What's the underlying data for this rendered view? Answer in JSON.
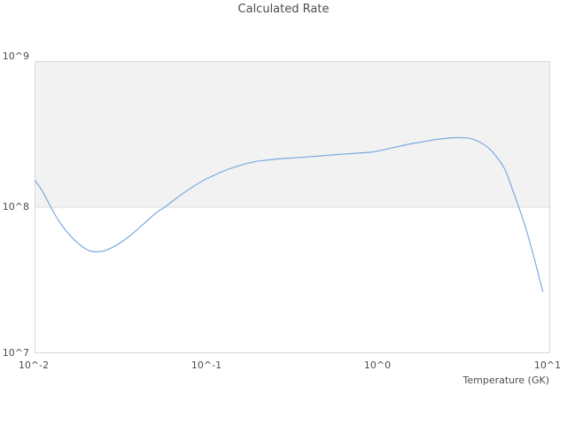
{
  "chart_data": {
    "type": "line",
    "title": "Calculated Rate",
    "xlabel": "Temperature (GK)",
    "ylabel": "",
    "x_scale": "log",
    "y_scale": "log",
    "xlim": [
      0.01,
      10
    ],
    "ylim": [
      10000000.0,
      1000000000.0
    ],
    "x_ticks": [
      "10^-2",
      "10^-1",
      "10^0",
      "10^1"
    ],
    "y_ticks": [
      "10^7",
      "10^8",
      "10^9"
    ],
    "legend": "none",
    "grid": "single horizontal gridline at 10^8; shaded band between 10^8 and 10^9",
    "series": [
      {
        "name": "Calculated Rate",
        "x": [
          0.01,
          0.011,
          0.013,
          0.015,
          0.018,
          0.021,
          0.025,
          0.03,
          0.036,
          0.042,
          0.05,
          0.057,
          0.066,
          0.077,
          0.095,
          0.11,
          0.13,
          0.16,
          0.19,
          0.22,
          0.28,
          0.36,
          0.46,
          0.58,
          0.75,
          0.94,
          1.2,
          1.5,
          1.85,
          2.2,
          2.8,
          3.4,
          3.9,
          4.4,
          4.9,
          5.5,
          6.1,
          6.6,
          7.3,
          8.1,
          9.1
        ],
        "y": [
          152000000.0,
          130000000.0,
          90000000.0,
          70000000.0,
          56000000.0,
          50000000.0,
          50000000.0,
          55000000.0,
          64000000.0,
          75000000.0,
          90000000.0,
          100000000.0,
          114000000.0,
          130000000.0,
          152000000.0,
          165000000.0,
          180000000.0,
          195000000.0,
          205000000.0,
          210000000.0,
          216000000.0,
          220000000.0,
          225000000.0,
          230000000.0,
          235000000.0,
          240000000.0,
          255000000.0,
          270000000.0,
          282000000.0,
          292000000.0,
          300000000.0,
          297000000.0,
          280000000.0,
          255000000.0,
          222000000.0,
          180000000.0,
          130000000.0,
          100000000.0,
          70000000.0,
          45000000.0,
          26500000.0
        ]
      }
    ],
    "colors": {
      "line": "#7aa9e0",
      "band_fill": "#f2f2f2",
      "plot_border": "#d9d9d9",
      "gridline": "#dedede",
      "text": "#4d4d4d"
    }
  }
}
